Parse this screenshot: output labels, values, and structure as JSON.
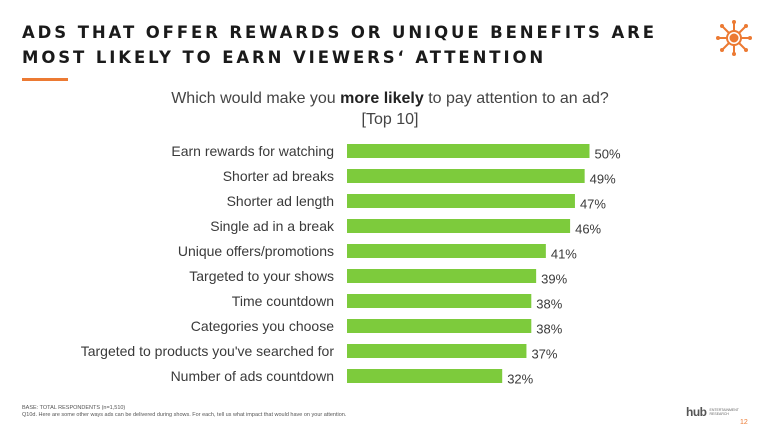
{
  "header": {
    "title": "ADS THAT OFFER REWARDS OR UNIQUE BENEFITS ARE MOST LIKELY TO EARN VIEWERS‘ ATTENTION"
  },
  "question": {
    "before": "Which would make you ",
    "emphasis": "more likely",
    "after": " to pay attention to an ad?",
    "qualifier": "[Top 10]"
  },
  "colors": {
    "bar": "#7dcb3c",
    "accent": "#ec7a33"
  },
  "chart_data": {
    "type": "bar",
    "orientation": "horizontal",
    "categories": [
      "Earn rewards for watching",
      "Shorter ad breaks",
      "Shorter ad length",
      "Single ad in a break",
      "Unique offers/promotions",
      "Targeted to your shows",
      "Time countdown",
      "Categories you choose",
      "Targeted to products you've searched for",
      "Number of ads countdown"
    ],
    "values": [
      50,
      49,
      47,
      46,
      41,
      39,
      38,
      38,
      37,
      32
    ],
    "value_labels": [
      "50%",
      "49%",
      "47%",
      "46%",
      "41%",
      "39%",
      "38%",
      "38%",
      "37%",
      "32%"
    ],
    "xlim": [
      0,
      65
    ],
    "grid": false,
    "legend": "none"
  },
  "footer": {
    "base": "BASE: TOTAL RESPONDENTS (n=1,510)",
    "question_text": "Q10d. Here are some other ways ads can be delivered during shows. For each, tell us what impact that would have on your attention.",
    "brand_name": "hub",
    "brand_tagline": "ENTERTAINMENT RESEARCH",
    "page_number": "12"
  },
  "icons": {
    "logo": "hub-sunburst-logo-icon"
  }
}
